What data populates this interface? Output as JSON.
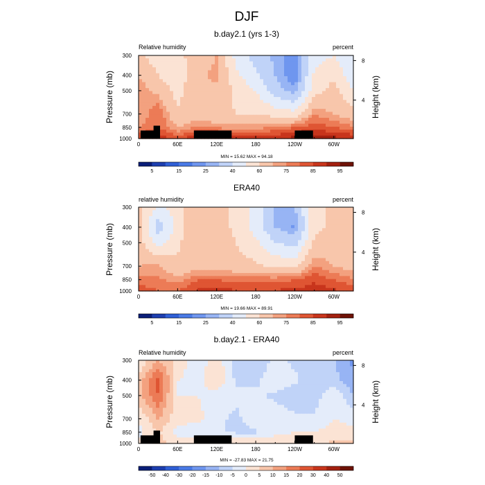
{
  "page_title": "DJF",
  "panels": [
    {
      "id": "model",
      "title": "b.day2.1 (yrs 1-3)",
      "left_label": "Relative humidity",
      "right_label": "percent",
      "stats": "MIN = 15.62  MAX = 94.18",
      "ylabel": "Pressure (mb)",
      "y2label": "Height (km)",
      "colorbar_ticks": [
        "5",
        "15",
        "25",
        "40",
        "60",
        "75",
        "85",
        "95"
      ],
      "has_topography": true
    },
    {
      "id": "obs",
      "title": "ERA40",
      "left_label": "relative humidity",
      "right_label": "percent",
      "stats": "MIN = 19.66  MAX = 89.91",
      "ylabel": "Pressure (mb)",
      "y2label": "Height (km)",
      "colorbar_ticks": [
        "5",
        "15",
        "25",
        "40",
        "60",
        "75",
        "85",
        "95"
      ],
      "has_topography": false
    },
    {
      "id": "diff",
      "title": "b.day2.1 - ERA40",
      "left_label": "Relative humidity",
      "right_label": "percent",
      "stats": "MIN = -27.83  MAX = 21.75",
      "ylabel": "Pressure (mb)",
      "y2label": "Height (km)",
      "colorbar_ticks": [
        "-50",
        "-40",
        "-30",
        "-20",
        "-15",
        "-10",
        "-5",
        "0",
        "5",
        "10",
        "15",
        "20",
        "30",
        "40",
        "50"
      ],
      "has_topography": true
    }
  ],
  "chart_data": [
    {
      "type": "heatmap",
      "title": "b.day2.1 (yrs 1-3)",
      "variable": "Relative humidity",
      "units": "percent",
      "xlabel": "",
      "x_ticks": [
        "0",
        "60E",
        "120E",
        "180",
        "120W",
        "60W"
      ],
      "x_tick_values": [
        0,
        60,
        120,
        180,
        240,
        300
      ],
      "xlim": [
        0,
        330
      ],
      "ylabel": "Pressure (mb)",
      "y_ticks": [
        300,
        400,
        500,
        700,
        850,
        1000
      ],
      "ylim": [
        1000,
        300
      ],
      "y2label": "Height (km)",
      "y2_ticks": [
        8,
        4
      ],
      "min": 15.62,
      "max": 94.18,
      "levels": [
        5,
        10,
        15,
        20,
        25,
        30,
        40,
        50,
        60,
        70,
        75,
        80,
        85,
        90,
        95
      ],
      "colorbar_ticks": [
        5,
        15,
        25,
        40,
        60,
        75,
        85,
        95
      ],
      "colors": [
        "#0a1e78",
        "#1d3eaf",
        "#2f5fd6",
        "#4a7ae6",
        "#6f96ef",
        "#97b4f4",
        "#c0d3f8",
        "#e4ecfa",
        "#fbe3d4",
        "#f8c6ab",
        "#f3a17f",
        "#ec7b56",
        "#df5533",
        "#c8351c",
        "#a3200f",
        "#6e1206"
      ],
      "lon": [
        0,
        30,
        60,
        90,
        120,
        150,
        180,
        210,
        240,
        270,
        300,
        330
      ],
      "lev": [
        300,
        400,
        500,
        700,
        850,
        1000
      ],
      "values": [
        [
          62,
          55,
          58,
          64,
          70,
          46,
          36,
          28,
          22,
          46,
          50,
          40
        ],
        [
          70,
          60,
          52,
          68,
          72,
          52,
          42,
          30,
          20,
          52,
          58,
          42
        ],
        [
          74,
          68,
          56,
          70,
          68,
          58,
          50,
          34,
          26,
          56,
          64,
          50
        ],
        [
          70,
          80,
          62,
          66,
          62,
          60,
          60,
          56,
          54,
          74,
          70,
          64
        ],
        [
          74,
          80,
          70,
          76,
          74,
          72,
          72,
          76,
          80,
          84,
          80,
          76
        ],
        [
          86,
          88,
          84,
          90,
          92,
          92,
          90,
          90,
          92,
          92,
          92,
          90
        ]
      ],
      "topography": [
        {
          "lon_start": 3,
          "lon_end": 27,
          "lev_top": 890
        },
        {
          "lon_start": 23,
          "lon_end": 33,
          "lev_top": 830
        },
        {
          "lon_start": 85,
          "lon_end": 143,
          "lev_top": 890
        },
        {
          "lon_start": 240,
          "lon_end": 268,
          "lev_top": 890
        }
      ]
    },
    {
      "type": "heatmap",
      "title": "ERA40",
      "variable": "relative humidity",
      "units": "percent",
      "xlabel": "",
      "x_ticks": [
        "0",
        "60E",
        "120E",
        "180",
        "120W",
        "60W"
      ],
      "x_tick_values": [
        0,
        60,
        120,
        180,
        240,
        300
      ],
      "xlim": [
        0,
        330
      ],
      "ylabel": "Pressure (mb)",
      "y_ticks": [
        300,
        400,
        500,
        700,
        850,
        1000
      ],
      "ylim": [
        1000,
        300
      ],
      "y2label": "Height (km)",
      "y2_ticks": [
        8,
        4
      ],
      "min": 19.66,
      "max": 89.91,
      "levels": [
        5,
        10,
        15,
        20,
        25,
        30,
        40,
        50,
        60,
        70,
        75,
        80,
        85,
        90,
        95
      ],
      "colorbar_ticks": [
        5,
        15,
        25,
        40,
        60,
        75,
        85,
        95
      ],
      "colors": [
        "#0a1e78",
        "#1d3eaf",
        "#2f5fd6",
        "#4a7ae6",
        "#6f96ef",
        "#97b4f4",
        "#c0d3f8",
        "#e4ecfa",
        "#fbe3d4",
        "#f8c6ab",
        "#f3a17f",
        "#ec7b56",
        "#df5533",
        "#c8351c",
        "#a3200f",
        "#6e1206"
      ],
      "lon": [
        0,
        30,
        60,
        90,
        120,
        150,
        180,
        210,
        240,
        270,
        300,
        330
      ],
      "lev": [
        300,
        400,
        500,
        700,
        850,
        1000
      ],
      "values": [
        [
          62,
          48,
          54,
          70,
          68,
          56,
          46,
          30,
          30,
          56,
          62,
          60
        ],
        [
          64,
          34,
          54,
          70,
          68,
          56,
          46,
          30,
          24,
          58,
          62,
          60
        ],
        [
          64,
          46,
          58,
          70,
          70,
          60,
          52,
          40,
          36,
          62,
          64,
          60
        ],
        [
          70,
          72,
          62,
          66,
          66,
          64,
          62,
          58,
          56,
          76,
          70,
          66
        ],
        [
          76,
          76,
          72,
          80,
          80,
          78,
          78,
          78,
          80,
          84,
          80,
          76
        ],
        [
          84,
          80,
          80,
          86,
          86,
          86,
          86,
          86,
          86,
          88,
          86,
          84
        ]
      ],
      "topography": []
    },
    {
      "type": "heatmap",
      "title": "b.day2.1 - ERA40",
      "variable": "Relative humidity",
      "units": "percent",
      "xlabel": "",
      "x_ticks": [
        "0",
        "60E",
        "120E",
        "180",
        "120W",
        "60W"
      ],
      "x_tick_values": [
        0,
        60,
        120,
        180,
        240,
        300
      ],
      "xlim": [
        0,
        330
      ],
      "ylabel": "Pressure (mb)",
      "y_ticks": [
        300,
        400,
        500,
        700,
        850,
        1000
      ],
      "ylim": [
        1000,
        300
      ],
      "y2label": "Height (km)",
      "y2_ticks": [
        8,
        4
      ],
      "min": -27.83,
      "max": 21.75,
      "levels": [
        -50,
        -40,
        -30,
        -20,
        -15,
        -10,
        -5,
        0,
        5,
        10,
        15,
        20,
        30,
        40,
        50
      ],
      "colorbar_ticks": [
        -50,
        -40,
        -30,
        -20,
        -15,
        -10,
        -5,
        0,
        5,
        10,
        15,
        20,
        30,
        40,
        50
      ],
      "colors": [
        "#0a1e78",
        "#1d3eaf",
        "#2f5fd6",
        "#4a7ae6",
        "#6f96ef",
        "#97b4f4",
        "#c0d3f8",
        "#e4ecfa",
        "#fbe3d4",
        "#f8c6ab",
        "#f3a17f",
        "#ec7b56",
        "#df5533",
        "#c8351c",
        "#a3200f",
        "#6e1206"
      ],
      "lon": [
        0,
        30,
        60,
        90,
        120,
        150,
        180,
        210,
        240,
        270,
        300,
        330
      ],
      "lev": [
        300,
        400,
        500,
        700,
        850,
        1000
      ],
      "values": [
        [
          0,
          10,
          4,
          -4,
          4,
          -8,
          -8,
          -4,
          -6,
          -8,
          -10,
          -16
        ],
        [
          6,
          22,
          0,
          -2,
          4,
          -6,
          -6,
          -2,
          -4,
          -8,
          -8,
          -14
        ],
        [
          8,
          20,
          0,
          0,
          -2,
          -4,
          -4,
          -6,
          -8,
          -8,
          0,
          -10
        ],
        [
          0,
          10,
          2,
          2,
          -4,
          -6,
          -2,
          -2,
          -4,
          -4,
          0,
          -2
        ],
        [
          -2,
          6,
          -2,
          -4,
          -4,
          -6,
          -6,
          -2,
          0,
          0,
          2,
          2
        ],
        [
          2,
          6,
          4,
          4,
          4,
          6,
          4,
          4,
          6,
          4,
          6,
          6
        ]
      ],
      "topography": [
        {
          "lon_start": 3,
          "lon_end": 27,
          "lev_top": 890
        },
        {
          "lon_start": 23,
          "lon_end": 33,
          "lev_top": 830
        },
        {
          "lon_start": 85,
          "lon_end": 143,
          "lev_top": 890
        },
        {
          "lon_start": 240,
          "lon_end": 268,
          "lev_top": 890
        }
      ]
    }
  ]
}
